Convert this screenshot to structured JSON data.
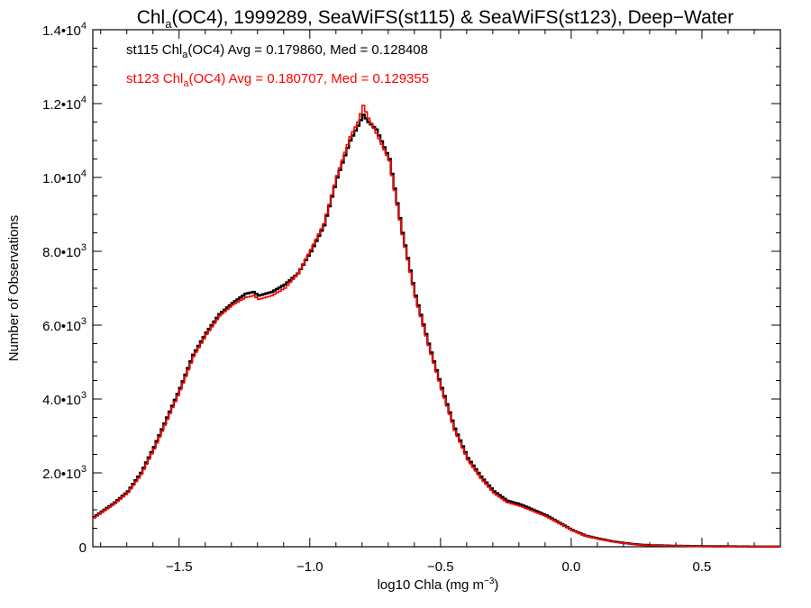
{
  "chart_data": {
    "type": "step",
    "title": {
      "main": "Chl",
      "sub": "a",
      "rest": "(OC4), 1999289, SeaWiFS(st115) & SeaWiFS(st123), Deep−Water"
    },
    "xlabel": {
      "text": "log10 Chla (mg m",
      "sup": "−3",
      "close": ")"
    },
    "ylabel": "Number of Observations",
    "xlim": [
      -1.83,
      0.8
    ],
    "ylim": [
      0,
      14000
    ],
    "x_ticks": [
      {
        "value": -1.5,
        "label": "−1.5"
      },
      {
        "value": -1.0,
        "label": "−1.0"
      },
      {
        "value": -0.5,
        "label": "−0.5"
      },
      {
        "value": 0.0,
        "label": "0.0"
      },
      {
        "value": 0.5,
        "label": "0.5"
      }
    ],
    "y_ticks": [
      {
        "value": 0,
        "mant": "0",
        "exp": ""
      },
      {
        "value": 2000,
        "mant": "2.0•10",
        "exp": "3"
      },
      {
        "value": 4000,
        "mant": "4.0•10",
        "exp": "3"
      },
      {
        "value": 6000,
        "mant": "6.0•10",
        "exp": "3"
      },
      {
        "value": 8000,
        "mant": "8.0•10",
        "exp": "3"
      },
      {
        "value": 10000,
        "mant": "1.0•10",
        "exp": "4"
      },
      {
        "value": 12000,
        "mant": "1.2•10",
        "exp": "4"
      },
      {
        "value": 14000,
        "mant": "1.4•10",
        "exp": "4"
      }
    ],
    "annotations": [
      {
        "pre": "st115 Chl",
        "sub": "a",
        "post": "(OC4) Avg = 0.179860, Med = 0.128408",
        "color": "#000000"
      },
      {
        "pre": "st123 Chl",
        "sub": "a",
        "post": "(OC4) Avg = 0.180707, Med = 0.129355",
        "color": "#ff0000"
      }
    ],
    "series": [
      {
        "color": "#000000",
        "x": [
          -1.83,
          -1.8,
          -1.75,
          -1.7,
          -1.65,
          -1.6,
          -1.55,
          -1.5,
          -1.45,
          -1.4,
          -1.35,
          -1.3,
          -1.25,
          -1.22,
          -1.2,
          -1.15,
          -1.1,
          -1.05,
          -1.0,
          -0.95,
          -0.9,
          -0.85,
          -0.82,
          -0.8,
          -0.78,
          -0.75,
          -0.7,
          -0.65,
          -0.6,
          -0.55,
          -0.5,
          -0.45,
          -0.4,
          -0.35,
          -0.3,
          -0.25,
          -0.2,
          -0.15,
          -0.1,
          -0.05,
          0.0,
          0.05,
          0.1,
          0.15,
          0.2,
          0.25,
          0.3,
          0.4,
          0.5,
          0.6,
          0.7,
          0.8
        ],
        "y": [
          800,
          950,
          1200,
          1500,
          2000,
          2700,
          3500,
          4300,
          5200,
          5800,
          6300,
          6600,
          6850,
          6900,
          6800,
          6900,
          7100,
          7400,
          8000,
          8700,
          10000,
          11000,
          11400,
          11700,
          11500,
          11300,
          10500,
          8500,
          6800,
          5500,
          4300,
          3200,
          2400,
          1900,
          1500,
          1250,
          1150,
          1000,
          850,
          650,
          450,
          300,
          220,
          150,
          100,
          60,
          40,
          25,
          15,
          10,
          5,
          5
        ]
      },
      {
        "color": "#ff0000",
        "x": [
          -1.83,
          -1.8,
          -1.75,
          -1.7,
          -1.65,
          -1.6,
          -1.55,
          -1.5,
          -1.45,
          -1.4,
          -1.35,
          -1.3,
          -1.25,
          -1.22,
          -1.2,
          -1.15,
          -1.1,
          -1.05,
          -1.0,
          -0.95,
          -0.9,
          -0.85,
          -0.82,
          -0.8,
          -0.78,
          -0.75,
          -0.7,
          -0.65,
          -0.6,
          -0.55,
          -0.5,
          -0.45,
          -0.4,
          -0.35,
          -0.3,
          -0.25,
          -0.2,
          -0.15,
          -0.1,
          -0.05,
          0.0,
          0.05,
          0.1,
          0.15,
          0.2,
          0.25,
          0.3,
          0.4,
          0.5,
          0.6,
          0.7,
          0.8
        ],
        "y": [
          780,
          930,
          1170,
          1470,
          1960,
          2650,
          3450,
          4250,
          5150,
          5750,
          6250,
          6550,
          6750,
          6800,
          6700,
          6800,
          7000,
          7400,
          8050,
          8750,
          10050,
          11100,
          11500,
          11950,
          11600,
          11200,
          10450,
          8450,
          6750,
          5450,
          4250,
          3150,
          2350,
          1850,
          1450,
          1200,
          1100,
          960,
          820,
          630,
          440,
          290,
          210,
          140,
          95,
          55,
          35,
          22,
          12,
          8,
          4,
          4
        ]
      }
    ]
  }
}
